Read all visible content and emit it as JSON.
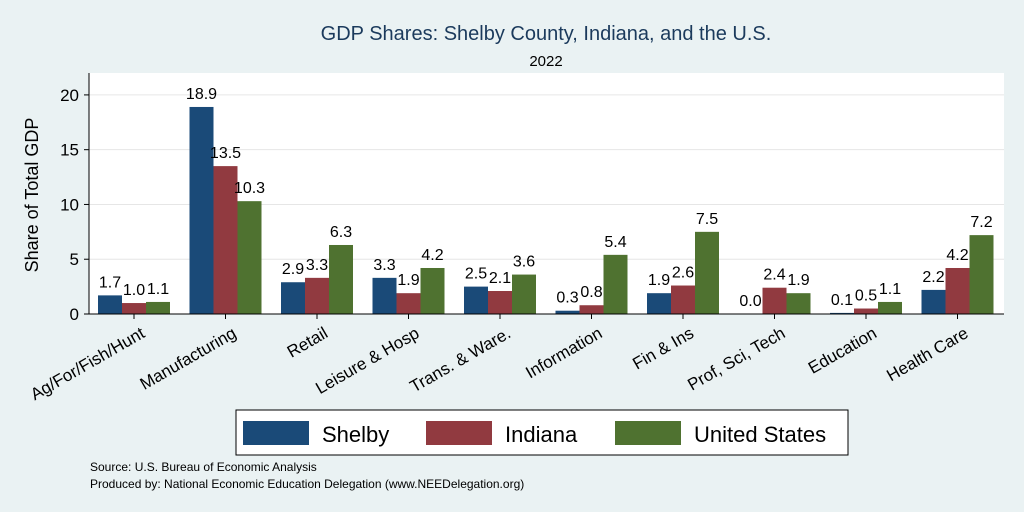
{
  "chart_data": {
    "type": "bar",
    "title": "GDP Shares: Shelby County, Indiana, and the U.S.",
    "subtitle": "2022",
    "ylabel": "Share of Total GDP",
    "ylim": [
      0,
      22
    ],
    "yticks": [
      0,
      5,
      10,
      15,
      20
    ],
    "grid": true,
    "legend_position": "bottom",
    "categories": [
      "Ag/For/Fish/Hunt",
      "Manufacturing",
      "Retail",
      "Leisure & Hosp",
      "Trans. & Ware.",
      "Information",
      "Fin & Ins",
      "Prof, Sci, Tech",
      "Education",
      "Health Care"
    ],
    "series": [
      {
        "name": "Shelby",
        "color": "#1a4a78",
        "values": [
          1.7,
          18.9,
          2.9,
          3.3,
          2.5,
          0.3,
          1.9,
          0.0,
          0.1,
          2.2
        ],
        "labels": [
          "1.7",
          "18.9",
          "2.9",
          "3.3",
          "2.5",
          "0.3",
          "1.9",
          "0.0",
          "0.1",
          "2.2"
        ]
      },
      {
        "name": "Indiana",
        "color": "#913a40",
        "values": [
          1.0,
          13.5,
          3.3,
          1.9,
          2.1,
          0.8,
          2.6,
          2.4,
          0.5,
          4.2
        ],
        "labels": [
          "1.0",
          "13.5",
          "3.3",
          "1.9",
          "2.1",
          "0.8",
          "2.6",
          "2.4",
          "0.5",
          "4.2"
        ]
      },
      {
        "name": "United States",
        "color": "#4f7230",
        "values": [
          1.1,
          10.3,
          6.3,
          4.2,
          3.6,
          5.4,
          7.5,
          1.9,
          1.1,
          7.2
        ],
        "labels": [
          "1.1",
          "10.3",
          "6.3",
          "4.2",
          "3.6",
          "5.4",
          "7.5",
          "1.9",
          "1.1",
          "7.2"
        ]
      }
    ],
    "notes": [
      "Source: U.S. Bureau of Economic Analysis",
      "Produced by: National Economic Education Delegation (www.NEEDelegation.org)"
    ]
  }
}
